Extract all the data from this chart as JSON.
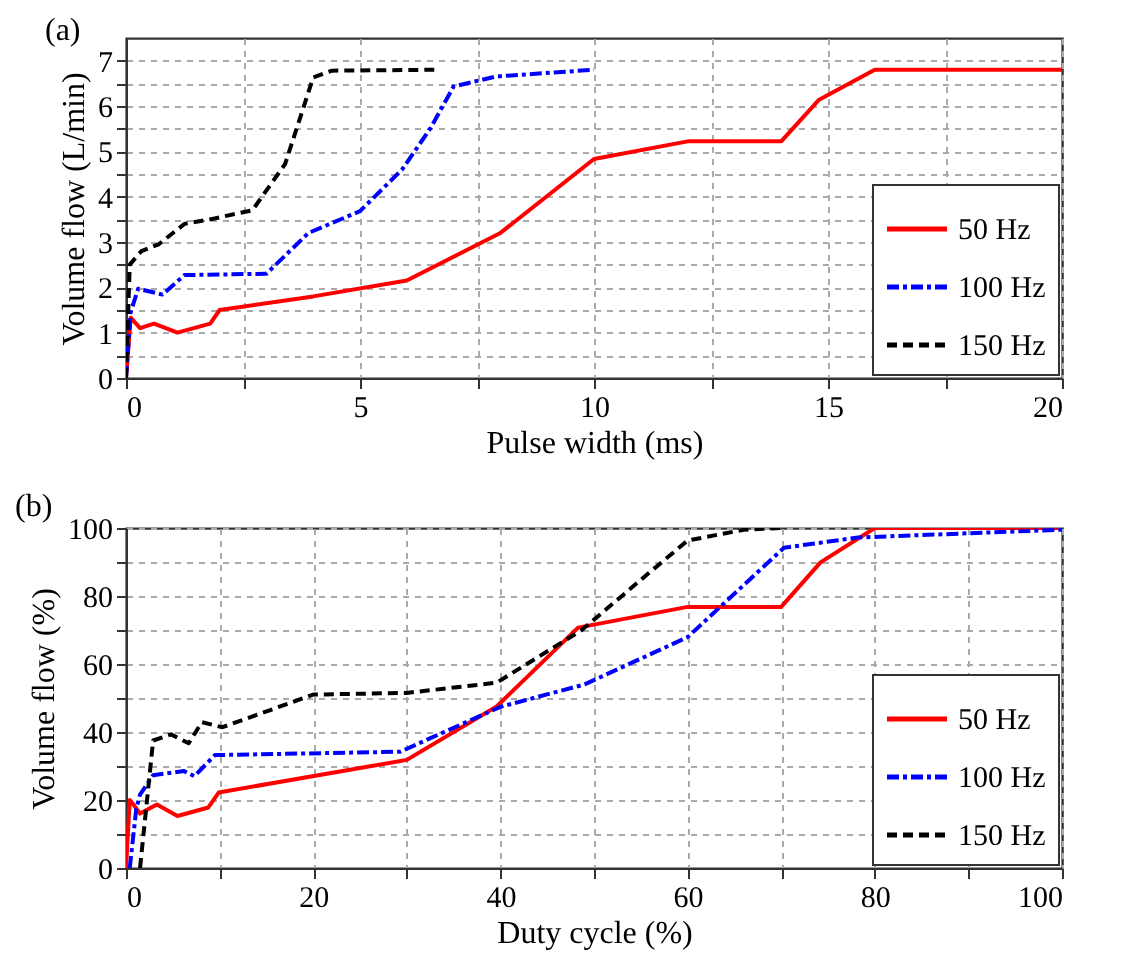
{
  "chart_data": [
    {
      "type": "line",
      "xlabel": "Pulse width (ms)",
      "ylabel": "Volume flow (L/min)",
      "annotations": [
        "(a)"
      ],
      "xlim": [
        0,
        20
      ],
      "xticks": [
        0,
        {
          "value": 2.5,
          "label": null
        },
        5,
        {
          "value": 7.5,
          "label": null
        },
        10,
        {
          "value": 12.5,
          "label": null
        },
        15,
        {
          "value": 17.5,
          "label": null
        },
        20
      ],
      "ylim": [
        0,
        7.5
      ],
      "yticks": [
        0,
        {
          "value": 0.5,
          "label": null
        },
        1,
        {
          "value": 1.5,
          "label": null
        },
        2,
        {
          "value": 2.5,
          "label": null
        },
        3,
        {
          "value": 3.5,
          "label": null
        },
        4,
        {
          "value": 4.5,
          "label": null
        },
        5,
        {
          "value": 5.5,
          "label": null
        },
        6,
        {
          "value": 6.5,
          "label": null
        },
        7
      ],
      "grid": true,
      "legend": "bottom right",
      "series": [
        {
          "name": "50 Hz",
          "color": "#ff0000",
          "line_style": "solid",
          "x": [
            0,
            0.1,
            0.3,
            0.6,
            1.1,
            1.8,
            2,
            4,
            6,
            8,
            10,
            12,
            14,
            14.8,
            16,
            20
          ],
          "values": [
            0,
            1.33,
            1.1,
            1.2,
            1.0,
            1.2,
            1.5,
            1.8,
            2.15,
            3.2,
            4.83,
            5.22,
            5.22,
            6.13,
            6.8,
            6.8
          ]
        },
        {
          "name": "100 Hz",
          "color": "#0000ff",
          "line_style": "dashdot",
          "x": [
            0,
            0.1,
            0.26,
            0.78,
            1.25,
            3.0,
            3.9,
            5.0,
            5.9,
            6.5,
            7.0,
            7.9,
            10
          ],
          "values": [
            0,
            1.45,
            1.97,
            1.84,
            2.27,
            2.3,
            3.2,
            3.68,
            4.6,
            5.5,
            6.43,
            6.65,
            6.8
          ]
        },
        {
          "name": "150 Hz",
          "color": "#000000",
          "line_style": "dashed",
          "x": [
            0,
            0.08,
            0.33,
            0.7,
            1.25,
            1.8,
            2.7,
            3.4,
            4.0,
            4.4,
            6.7
          ],
          "values": [
            0,
            2.5,
            2.8,
            2.95,
            3.4,
            3.5,
            3.7,
            4.72,
            6.63,
            6.78,
            6.8
          ]
        }
      ]
    },
    {
      "type": "line",
      "xlabel": "Duty cycle (%)",
      "ylabel": "Volume flow (%)",
      "annotations": [
        "(b)"
      ],
      "xlim": [
        0,
        100
      ],
      "xticks": [
        0,
        {
          "value": 10,
          "label": null
        },
        20,
        {
          "value": 30,
          "label": null
        },
        40,
        {
          "value": 50,
          "label": null
        },
        60,
        {
          "value": 70,
          "label": null
        },
        80,
        {
          "value": 90,
          "label": null
        },
        100
      ],
      "ylim": [
        0,
        100
      ],
      "yticks": [
        0,
        {
          "value": 10,
          "label": null
        },
        20,
        {
          "value": 30,
          "label": null
        },
        40,
        {
          "value": 50,
          "label": null
        },
        60,
        {
          "value": 70,
          "label": null
        },
        80,
        {
          "value": 90,
          "label": null
        },
        100
      ],
      "grid": true,
      "legend": "bottom right",
      "series": [
        {
          "name": "50 Hz",
          "color": "#ff0000",
          "line_style": "solid",
          "x": [
            0,
            0.4,
            0.7,
            1.5,
            3.3,
            5.5,
            8.8,
            9.9,
            30,
            39.6,
            48.3,
            60,
            70,
            74.2,
            80,
            100
          ],
          "values": [
            0,
            20,
            19,
            16,
            18.7,
            15.3,
            17.8,
            22.2,
            31.8,
            47.5,
            70.7,
            76.8,
            76.8,
            89.9,
            100,
            100
          ]
        },
        {
          "name": "100 Hz",
          "color": "#0000ff",
          "line_style": "dashdot",
          "x": [
            0.4,
            1.1,
            1.5,
            2.9,
            6.2,
            7.3,
            9.5,
            29.3,
            40,
            49,
            60,
            70.3,
            78.2,
            100
          ],
          "values": [
            0,
            17.4,
            21.6,
            27.3,
            28.5,
            27,
            33.2,
            34.2,
            47.4,
            54,
            67.9,
            94.2,
            97.2,
            99.5
          ]
        },
        {
          "name": "150 Hz",
          "color": "#000000",
          "line_style": "dashed",
          "x": [
            1.5,
            2.9,
            4.8,
            6.7,
            8.1,
            10.3,
            20,
            30,
            39.6,
            48.7,
            55.7,
            60,
            66,
            70
          ],
          "values": [
            0,
            37.5,
            39.3,
            36.7,
            42.9,
            41.4,
            51,
            51.5,
            54.5,
            70,
            86.4,
            96.3,
            99.5,
            100
          ]
        }
      ]
    }
  ]
}
